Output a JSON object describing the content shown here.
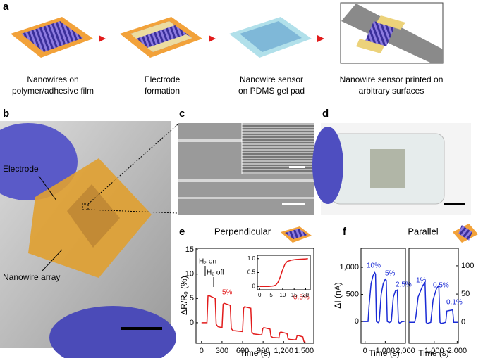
{
  "figure": {
    "panel_labels": [
      "a",
      "b",
      "c",
      "d",
      "e",
      "f"
    ],
    "steps": [
      [
        "Nanowires on",
        "polymer/adhesive film"
      ],
      [
        "Electrode",
        "formation"
      ],
      [
        "Nanowire sensor",
        "on PDMS gel pad"
      ],
      [
        "Nanowire sensor printed on",
        "arbitrary surfaces"
      ]
    ],
    "photo_labels": [
      "Electrode",
      "Nanowire array"
    ]
  },
  "chart_data": [
    {
      "type": "line",
      "title": "Perpendicular",
      "xlabel": "Time (s)",
      "ylabel": "ΔR/R₀ (%)",
      "x": [
        0,
        80,
        95,
        110,
        200,
        215,
        240,
        300,
        315,
        330,
        420,
        435,
        460,
        600,
        615,
        630,
        720,
        735,
        760,
        880,
        895,
        910,
        1000,
        1015,
        1040,
        1130,
        1145,
        1160,
        1250,
        1265,
        1290,
        1380,
        1395,
        1410,
        1480,
        1495,
        1520
      ],
      "series": [
        {
          "name": "Perpendicular",
          "color": "#e21b1b",
          "values": [
            0,
            0,
            5.5,
            5.6,
            5.0,
            -0.3,
            -0.8,
            -1.0,
            3.8,
            4.0,
            3.6,
            -1.2,
            -1.6,
            -1.8,
            3.0,
            3.3,
            3.0,
            -1.9,
            -2.3,
            -2.5,
            -1.2,
            -1.0,
            -1.3,
            -2.8,
            -3.0,
            -3.1,
            -2.0,
            -1.9,
            -2.2,
            -3.3,
            -3.4,
            -3.5,
            -2.7,
            -2.6,
            -2.9,
            -3.8,
            -4.0
          ]
        }
      ],
      "xlim": [
        -80,
        1640
      ],
      "xticks": [
        0,
        300,
        600,
        900,
        {
          "value": 1200,
          "label": "1,200"
        },
        {
          "value": 1500,
          "label": "1,500"
        }
      ],
      "ylim": [
        -4.2,
        15.3
      ],
      "yticks": [
        0,
        5,
        10,
        15
      ],
      "annotations": [
        "H₂ on",
        "H₂ off",
        "5%",
        "0.5%"
      ]
    },
    {
      "type": "line",
      "x": [
        0,
        2,
        4,
        6,
        7,
        8,
        9,
        10,
        11,
        12,
        14,
        16,
        18,
        20,
        21
      ],
      "series": [
        {
          "name": "inset",
          "color": "#e21b1b",
          "values": [
            0,
            0,
            0,
            0.02,
            0.05,
            0.15,
            0.35,
            0.6,
            0.8,
            0.9,
            0.95,
            0.97,
            0.98,
            0.99,
            1.0
          ]
        }
      ],
      "xlim": [
        -1,
        22
      ],
      "xticks": [
        0,
        5,
        10,
        15,
        20
      ],
      "ylim": [
        -0.12,
        1.12
      ],
      "yticks": [
        0,
        0.5,
        {
          "value": 1,
          "label": "1.0"
        }
      ]
    },
    {
      "type": "line",
      "title": "Parallel",
      "xlabel": "Time (s)",
      "ylabel": "ΔI (nA)",
      "x": [
        -100,
        150,
        200,
        300,
        400,
        480,
        520,
        560,
        650,
        700,
        800,
        900,
        1000,
        1050,
        1100,
        1200,
        1300,
        1400,
        1500,
        1600,
        1650,
        1700,
        1850,
        1950
      ],
      "series": [
        {
          "name": "left",
          "color": "#1a2bd6",
          "values": [
            0,
            0,
            300,
            700,
            850,
            900,
            870,
            0,
            -20,
            0,
            500,
            700,
            780,
            760,
            0,
            -20,
            0,
            450,
            560,
            580,
            0,
            -30,
            0,
            0
          ]
        }
      ],
      "xlim": [
        -200,
        2000
      ],
      "xticks": [
        0,
        {
          "value": 1000,
          "label": "1,000"
        },
        {
          "value": 2000,
          "label": "2,000"
        }
      ],
      "ylim": [
        -400,
        1350
      ],
      "yticks": [
        0,
        500,
        {
          "value": 1000,
          "label": "1,000"
        }
      ],
      "annotations": [
        "10%",
        "5%",
        "2.5%"
      ]
    },
    {
      "type": "line",
      "xlabel": "Time (s)",
      "x": [
        -100,
        150,
        200,
        300,
        500,
        600,
        650,
        700,
        850,
        950,
        1100,
        1200,
        1250,
        1300,
        1500,
        1550,
        1800,
        1850,
        1950,
        2050
      ],
      "series": [
        {
          "name": "right",
          "color": "#1a2bd6",
          "values": [
            0,
            0,
            10,
            45,
            65,
            70,
            0,
            -2,
            0,
            40,
            60,
            65,
            0,
            -2,
            0,
            20,
            22,
            0,
            0,
            0
          ]
        }
      ],
      "xlim": [
        -100,
        2050
      ],
      "xticks": [
        {
          "value": 1000,
          "label": "1,000"
        },
        {
          "value": 2000,
          "label": "2,000"
        }
      ],
      "ylim": [
        -37,
        131
      ],
      "yticks": [
        0,
        50,
        100
      ],
      "annotations": [
        "1%",
        "0.5%",
        "0.1%"
      ]
    }
  ]
}
